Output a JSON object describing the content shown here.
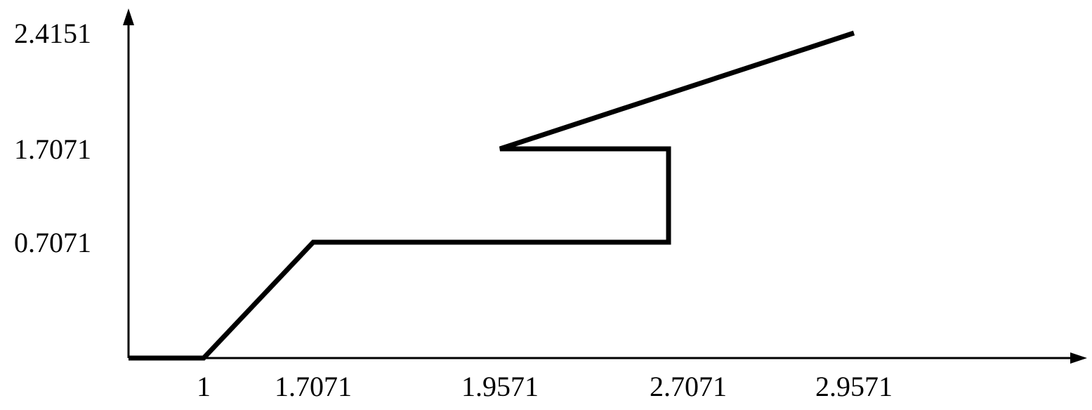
{
  "chart_data": {
    "type": "line",
    "title": "",
    "xlabel": "",
    "ylabel": "",
    "x_ticks": [
      "1",
      "1.7071",
      "1.9571",
      "2.7071",
      "2.9571"
    ],
    "y_ticks": [
      "0.7071",
      "1.7071",
      "2.4151"
    ],
    "series": [
      {
        "points": [
          {
            "x": 0.57,
            "y": 0
          },
          {
            "x": 1,
            "y": 0
          },
          {
            "x": 1.7071,
            "y": 0.7071
          },
          {
            "x": 2.6,
            "y": 0.7071
          },
          {
            "x": 2.6,
            "y": 1.7071
          },
          {
            "x": 1.9571,
            "y": 1.7071
          },
          {
            "x": 2.9571,
            "y": 2.4151
          }
        ]
      }
    ],
    "grid": false,
    "legend": "none",
    "line_color": "#000000",
    "axis_color": "#000000"
  }
}
